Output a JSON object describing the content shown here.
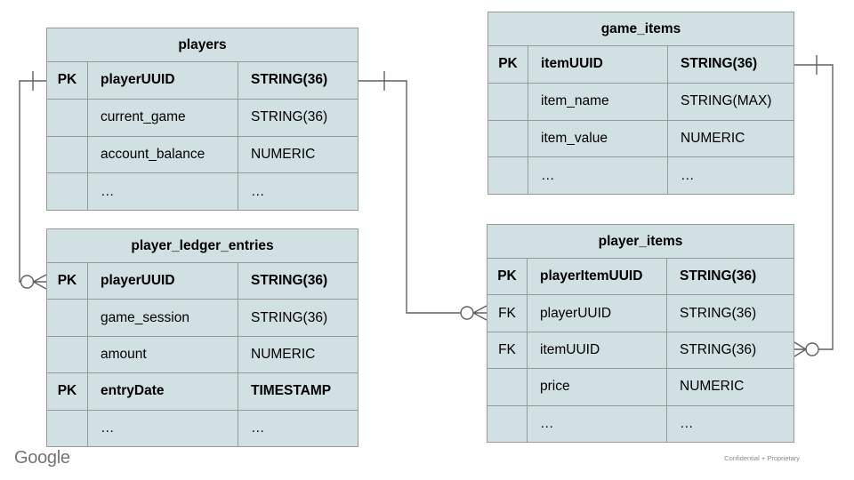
{
  "slide": {
    "footer_logo_text": "Google",
    "footer_note": "Confidential + Proprietary"
  },
  "colors": {
    "cell_bg": "#d0e0e3",
    "border": "#999999",
    "connector": "#606060",
    "text": "#000000",
    "footer_gray": "#757575",
    "note_gray": "#8a8a8a"
  },
  "tables": {
    "players": {
      "title": "players",
      "rows": [
        {
          "key": "PK",
          "name": "playerUUID",
          "type": "STRING(36)",
          "bold": true
        },
        {
          "key": "",
          "name": "current_game",
          "type": "STRING(36)",
          "bold": false
        },
        {
          "key": "",
          "name": "account_balance",
          "type": "NUMERIC",
          "bold": false
        },
        {
          "key": "",
          "name": "…",
          "type": "…",
          "bold": false
        }
      ]
    },
    "game_items": {
      "title": "game_items",
      "rows": [
        {
          "key": "PK",
          "name": "itemUUID",
          "type": "STRING(36)",
          "bold": true
        },
        {
          "key": "",
          "name": "item_name",
          "type": "STRING(MAX)",
          "bold": false
        },
        {
          "key": "",
          "name": "item_value",
          "type": "NUMERIC",
          "bold": false
        },
        {
          "key": "",
          "name": "…",
          "type": "…",
          "bold": false
        }
      ]
    },
    "player_ledger_entries": {
      "title": "player_ledger_entries",
      "rows": [
        {
          "key": "PK",
          "name": "playerUUID",
          "type": "STRING(36)",
          "bold": true
        },
        {
          "key": "",
          "name": "game_session",
          "type": "STRING(36)",
          "bold": false
        },
        {
          "key": "",
          "name": "amount",
          "type": "NUMERIC",
          "bold": false
        },
        {
          "key": "PK",
          "name": "entryDate",
          "type": "TIMESTAMP",
          "bold": true
        },
        {
          "key": "",
          "name": "…",
          "type": "…",
          "bold": false
        }
      ]
    },
    "player_items": {
      "title": "player_items",
      "rows": [
        {
          "key": "PK",
          "name": "playerItemUUID",
          "type": "STRING(36)",
          "bold": true
        },
        {
          "key": "FK",
          "name": "playerUUID",
          "type": "STRING(36)",
          "bold": false
        },
        {
          "key": "FK",
          "name": "itemUUID",
          "type": "STRING(36)",
          "bold": false
        },
        {
          "key": "",
          "name": "price",
          "type": "NUMERIC",
          "bold": false
        },
        {
          "key": "",
          "name": "…",
          "type": "…",
          "bold": false
        }
      ]
    }
  },
  "relationships": [
    {
      "from": "players.playerUUID",
      "to": "player_ledger_entries.playerUUID",
      "from_cardinality": "one",
      "to_cardinality": "zero-or-many"
    },
    {
      "from": "players.playerUUID",
      "to": "player_items.playerUUID",
      "from_cardinality": "one",
      "to_cardinality": "zero-or-many"
    },
    {
      "from": "game_items.itemUUID",
      "to": "player_items.itemUUID",
      "from_cardinality": "one",
      "to_cardinality": "zero-or-many"
    }
  ]
}
